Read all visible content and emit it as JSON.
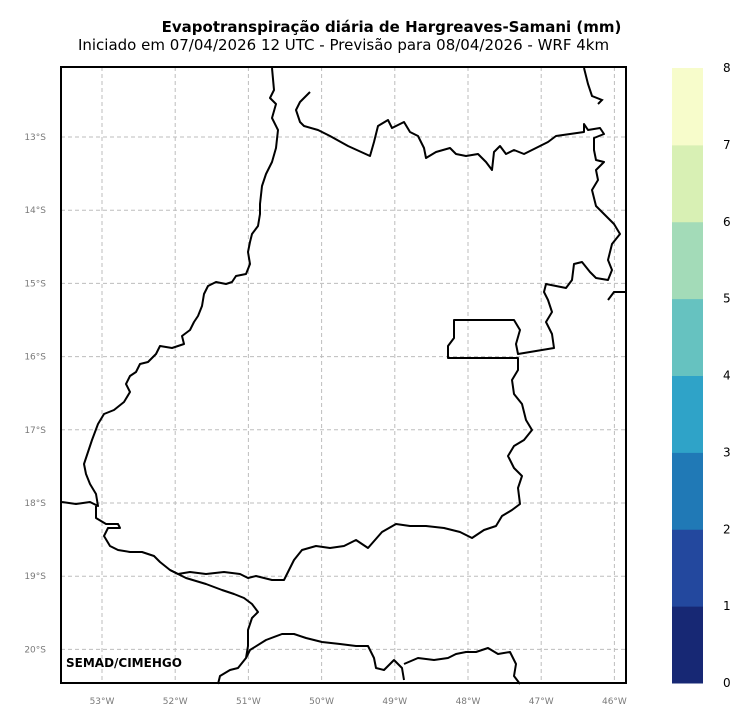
{
  "title": "Evapotranspiração diária de Hargreaves-Samani (mm)",
  "subtitle": "Iniciado em 07/04/2026 12 UTC - Previsão para 08/04/2026 - WRF 4km",
  "credit": "SEMAD/CIMEHGO",
  "map": {
    "lat_labels": [
      "13°S",
      "14°S",
      "15°S",
      "16°S",
      "17°S",
      "18°S",
      "19°S",
      "20°S"
    ],
    "lon_labels": [
      "53°W",
      "52°W",
      "51°W",
      "50°W",
      "49°W",
      "48°W",
      "47°W",
      "46°W"
    ]
  },
  "colorbar": {
    "ticks": [
      "0",
      "1",
      "2",
      "3",
      "4",
      "5",
      "6",
      "7",
      "8"
    ],
    "colors": [
      "#172874",
      "#23489e",
      "#2079b6",
      "#2fa3c8",
      "#66c2c0",
      "#a3dbb8",
      "#d8f0b4",
      "#f7fccb"
    ]
  }
}
